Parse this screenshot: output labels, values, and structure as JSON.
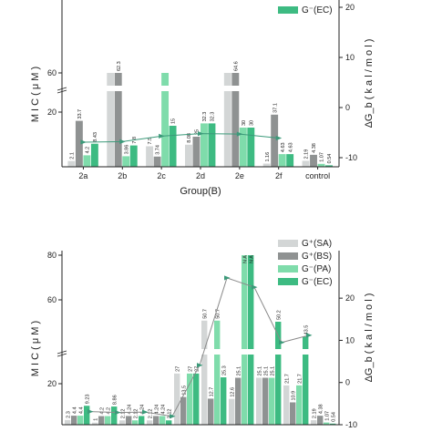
{
  "chart_data": [
    {
      "type": "bar",
      "xlabel": "Group(B)",
      "ylabel": "M I C ( μ M )",
      "y2label": "ΔG_b ( k a l / m o l )",
      "y_ticks": [
        "20",
        "60"
      ],
      "y2_ticks": [
        "20",
        "10",
        "0",
        "-10"
      ],
      "y2lim": [
        -10,
        20
      ],
      "broken_y_axis": true,
      "categories": [
        "2a",
        "2b",
        "2c",
        "2d",
        "2e",
        "2f",
        "control"
      ],
      "legend": [
        "G⁻(EC)"
      ],
      "series": [
        {
          "color": "#d3d6d6",
          "values": [
            2.1,
            1000,
            7.5,
            8.08,
            1000,
            1.16,
            2.19
          ],
          "labels": [
            "2.1",
            "",
            "7.5",
            "8.08",
            "",
            "1.16",
            "2.19"
          ]
        },
        {
          "color": "#8f9292",
          "values": [
            33.7,
            62.3,
            3.74,
            25,
            64.6,
            37.1,
            4.38
          ],
          "labels": [
            "33.7",
            "62.3",
            "3.74",
            "25",
            "64.6",
            "37.1",
            "4.38"
          ]
        },
        {
          "color": "#7fdcab",
          "values": [
            4.2,
            3.86,
            1000,
            32.3,
            30,
            4.63,
            1.07
          ],
          "labels": [
            "4.2",
            "3.86",
            "",
            "32.3",
            "30",
            "4.63",
            "1.07"
          ]
        },
        {
          "color": "#3dbb82",
          "values": [
            8.43,
            7.8,
            15,
            32.3,
            30,
            4.63,
            0.54
          ],
          "labels": [
            "8.43",
            "7.8",
            "15",
            "32.3",
            "30",
            "4.63",
            "0.54"
          ]
        }
      ],
      "dG_line": {
        "color": "#3c9a7a",
        "values": [
          -6.9,
          -6.8,
          -5.7,
          -5.2,
          -5.3,
          -6.1
        ]
      }
    },
    {
      "type": "bar",
      "ylabel": "M I C ( μ M )",
      "y2label": "ΔG_b ( k a l / m o l )",
      "y_ticks": [
        "20",
        "60",
        "80"
      ],
      "y2_ticks": [
        "20",
        "10",
        "0",
        "-10"
      ],
      "y2lim": [
        -10,
        25
      ],
      "broken_y_axis": true,
      "legend": [
        "G⁺(SA)",
        "G⁺(BS)",
        "G⁻(PA)",
        "G⁻(EC)"
      ],
      "na_label": "N A",
      "series": [
        {
          "color": "#d3d6d6",
          "values": [
            2.3,
            1,
            2.12,
            2.12,
            27,
            50.7,
            12.6,
            25.1,
            21.7,
            2.19
          ],
          "labels": [
            "2.3",
            "1",
            "2.12",
            "2.12",
            "27",
            "50.7",
            "12.6",
            "25.1",
            "21.7",
            "2.19"
          ]
        },
        {
          "color": "#8f9292",
          "values": [
            4.4,
            4.2,
            4.24,
            4.24,
            13.5,
            12.7,
            25.1,
            25.1,
            10.9,
            4.38
          ],
          "labels": [
            "4.4",
            "4.2",
            "4.24",
            "4.24",
            "13.5",
            "12.7",
            "25.1",
            "25.1",
            "10.9",
            "4.38"
          ]
        },
        {
          "color": "#7fdcab",
          "values": [
            4.4,
            4.2,
            2.12,
            4.24,
            27,
            50.7,
            100,
            25.1,
            21.7,
            1.07
          ],
          "labels": [
            "4.4",
            "4.2",
            "2.12",
            "4.24",
            "27",
            "50.7",
            "N A",
            "25.1",
            "21.7",
            "1.07"
          ]
        },
        {
          "color": "#3dbb82",
          "values": [
            9.23,
            8.86,
            4.24,
            2.12,
            27,
            25.3,
            100,
            50.2,
            43.5,
            0.54
          ],
          "labels": [
            "9.23",
            "8.86",
            "4.24",
            "2.12",
            "27",
            "25.3",
            "N A",
            "50.2",
            "43.5",
            "0.54"
          ]
        }
      ],
      "dG_line": {
        "color": "#8a8a8a",
        "marker_color": "#3c9a7a",
        "values": [
          -6.9,
          -7.1,
          -7.0,
          -8.0,
          4.1,
          24.8,
          22.6,
          9.5,
          11.2
        ]
      }
    }
  ]
}
